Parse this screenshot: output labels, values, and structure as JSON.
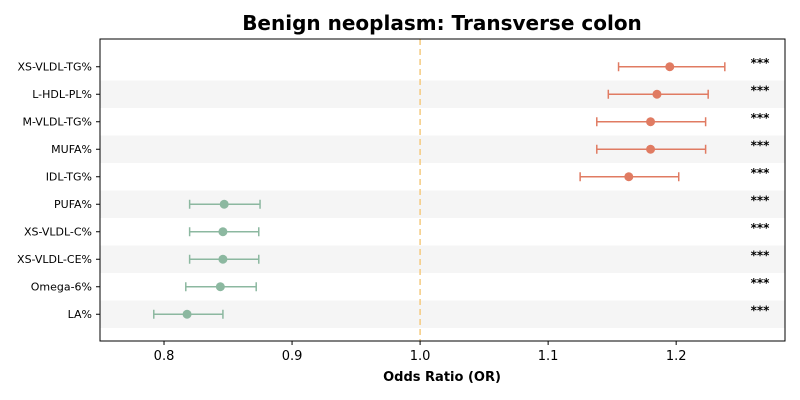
{
  "chart_data": {
    "type": "scatter",
    "subtype": "forest-plot",
    "title": "Benign neoplasm: Transverse colon",
    "xlabel": "Odds Ratio (OR)",
    "ylabel": "",
    "xlim": [
      0.75,
      1.285
    ],
    "xticks": [
      0.8,
      0.9,
      1.0,
      1.1,
      1.2
    ],
    "xtick_labels": [
      "0.8",
      "0.9",
      "1.0",
      "1.1",
      "1.2"
    ],
    "reference_line": 1.0,
    "grid": false,
    "row_shading": "alternating",
    "colors": {
      "increased": "#e07b62",
      "decreased": "#8cb8a0",
      "reference_line": "#f5c97e",
      "row_shade": "#f5f5f5"
    },
    "rows": [
      {
        "label": "XS-VLDL-TG%",
        "or": 1.195,
        "ci_low": 1.155,
        "ci_high": 1.238,
        "sig": "***",
        "direction": "increased"
      },
      {
        "label": "L-HDL-PL%",
        "or": 1.185,
        "ci_low": 1.147,
        "ci_high": 1.225,
        "sig": "***",
        "direction": "increased"
      },
      {
        "label": "M-VLDL-TG%",
        "or": 1.18,
        "ci_low": 1.138,
        "ci_high": 1.223,
        "sig": "***",
        "direction": "increased"
      },
      {
        "label": "MUFA%",
        "or": 1.18,
        "ci_low": 1.138,
        "ci_high": 1.223,
        "sig": "***",
        "direction": "increased"
      },
      {
        "label": "IDL-TG%",
        "or": 1.163,
        "ci_low": 1.125,
        "ci_high": 1.202,
        "sig": "***",
        "direction": "increased"
      },
      {
        "label": "PUFA%",
        "or": 0.847,
        "ci_low": 0.82,
        "ci_high": 0.875,
        "sig": "***",
        "direction": "decreased"
      },
      {
        "label": "XS-VLDL-C%",
        "or": 0.846,
        "ci_low": 0.82,
        "ci_high": 0.874,
        "sig": "***",
        "direction": "decreased"
      },
      {
        "label": "XS-VLDL-CE%",
        "or": 0.846,
        "ci_low": 0.82,
        "ci_high": 0.874,
        "sig": "***",
        "direction": "decreased"
      },
      {
        "label": "Omega-6%",
        "or": 0.844,
        "ci_low": 0.817,
        "ci_high": 0.872,
        "sig": "***",
        "direction": "decreased"
      },
      {
        "label": "LA%",
        "or": 0.818,
        "ci_low": 0.792,
        "ci_high": 0.846,
        "sig": "***",
        "direction": "decreased"
      }
    ]
  }
}
